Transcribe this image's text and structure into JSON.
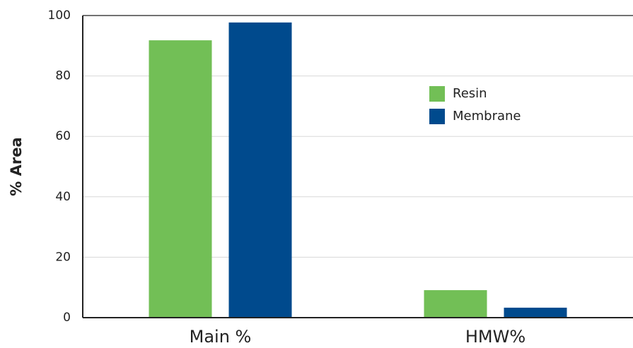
{
  "chart_data": {
    "type": "bar",
    "y_label": "% Area",
    "categories": [
      "Main %",
      "HMW%"
    ],
    "series": [
      {
        "name": "Resin",
        "color": "#72bf56",
        "values": [
          91.8,
          9.1
        ]
      },
      {
        "name": "Membrane",
        "color": "#004a8d",
        "values": [
          97.7,
          3.3
        ]
      }
    ],
    "ylim": [
      0,
      100
    ],
    "yticks": [
      0,
      20,
      40,
      60,
      80,
      100
    ],
    "grid": true
  }
}
